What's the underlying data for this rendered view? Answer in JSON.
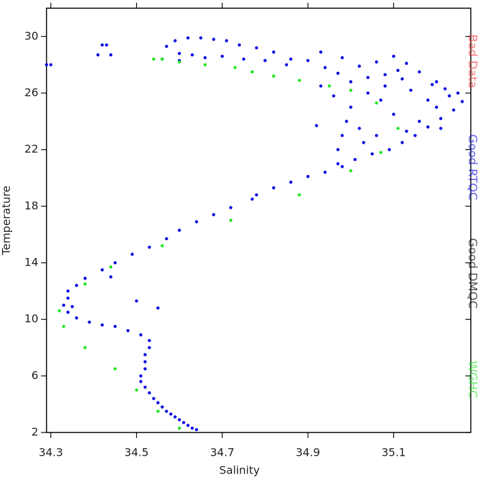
{
  "chart_data": {
    "type": "scatter",
    "xlabel": "Salinity",
    "ylabel": "Temperature",
    "xlim": [
      34.29,
      35.28
    ],
    "ylim": [
      2,
      32
    ],
    "xticks": [
      34.3,
      34.5,
      34.7,
      34.9,
      35.1
    ],
    "yticks": [
      2,
      6,
      10,
      14,
      18,
      22,
      26,
      30
    ],
    "series": [
      {
        "name": "Bad Data",
        "color": "#ff3030",
        "x": [],
        "values": []
      },
      {
        "name": "Good RTQC",
        "color": "#0a0ae6",
        "x": [
          34.64,
          34.63,
          34.62,
          34.61,
          34.6,
          34.59,
          34.58,
          34.57,
          34.56,
          34.55,
          34.54,
          34.53,
          34.52,
          34.51,
          34.51,
          34.52,
          34.52,
          34.52,
          34.53,
          34.53,
          34.51,
          34.48,
          34.45,
          34.42,
          34.39,
          34.36,
          34.34,
          34.33,
          34.35,
          34.34,
          34.34,
          34.36,
          34.38,
          34.42,
          34.45,
          34.49,
          34.53,
          34.57,
          34.6,
          34.64,
          34.68,
          34.72,
          34.77,
          34.78,
          34.82,
          34.86,
          34.9,
          34.94,
          34.98,
          35.01,
          35.05,
          35.09,
          35.12,
          35.15,
          35.18,
          35.21,
          35.24,
          35.26,
          35.25,
          35.22,
          35.19,
          35.12,
          35.08,
          35.04,
          35.0,
          34.97,
          34.94,
          34.9,
          34.85,
          34.8,
          34.75,
          34.7,
          34.66,
          34.63,
          34.6,
          34.57,
          34.59,
          34.62,
          34.65,
          34.68,
          34.71,
          34.74,
          34.78,
          34.82,
          34.86,
          34.93,
          34.98,
          35.02,
          35.06,
          35.1,
          35.13,
          35.16,
          35.2,
          35.23,
          35.2,
          35.16,
          35.13,
          35.1,
          35.07,
          35.04,
          35.0,
          34.99,
          34.98,
          34.97,
          35.02,
          35.03,
          35.08,
          35.14,
          35.18,
          35.21,
          35.06,
          34.96,
          34.93,
          35.11,
          34.97,
          34.92,
          34.55,
          34.5,
          34.44,
          34.3,
          34.29,
          34.42,
          34.43,
          34.41,
          34.44,
          34.56,
          34.6
        ],
        "values": [
          2.2,
          2.3,
          2.5,
          2.7,
          2.9,
          3.1,
          3.3,
          3.5,
          3.8,
          4.1,
          4.4,
          4.8,
          5.2,
          5.6,
          6.0,
          6.5,
          7.0,
          7.5,
          8.0,
          8.5,
          8.9,
          9.2,
          9.5,
          9.6,
          9.8,
          10.1,
          10.5,
          11.0,
          10.9,
          11.5,
          12.0,
          12.4,
          12.9,
          13.5,
          14.0,
          14.6,
          15.1,
          15.7,
          16.3,
          16.9,
          17.4,
          17.9,
          18.5,
          18.8,
          19.3,
          19.7,
          20.1,
          20.4,
          20.8,
          21.3,
          21.7,
          22.0,
          22.5,
          23.0,
          23.6,
          24.2,
          24.8,
          25.4,
          26.0,
          26.3,
          26.6,
          27.0,
          27.3,
          27.1,
          26.8,
          27.4,
          27.8,
          28.3,
          28.0,
          28.3,
          28.4,
          28.6,
          28.5,
          28.7,
          28.8,
          29.3,
          29.7,
          29.9,
          29.9,
          29.8,
          29.7,
          29.4,
          29.2,
          28.9,
          28.4,
          28.9,
          28.5,
          27.9,
          28.2,
          28.6,
          28.1,
          27.5,
          26.8,
          25.8,
          25.0,
          24.0,
          23.3,
          24.5,
          25.5,
          26.0,
          25.0,
          24.0,
          23.0,
          22.0,
          23.5,
          22.5,
          26.5,
          26.2,
          25.5,
          23.5,
          23.0,
          25.8,
          26.5,
          27.6,
          21.0,
          23.7,
          10.8,
          11.3,
          13.0,
          28.0,
          28.0,
          29.4,
          29.4,
          28.7,
          28.7,
          28.4,
          28.3
        ]
      },
      {
        "name": "Good DMQC",
        "color": "#000000",
        "x": [],
        "values": []
      },
      {
        "name": "WGHC",
        "color": "#22e622",
        "x": [
          34.6,
          34.55,
          34.5,
          34.45,
          34.38,
          34.33,
          34.32,
          34.38,
          34.44,
          34.56,
          34.72,
          34.88,
          35.0,
          35.07,
          35.11,
          35.06,
          35.0,
          34.95,
          34.88,
          34.82,
          34.77,
          34.73,
          34.66,
          34.6,
          34.56,
          34.54
        ],
        "values": [
          2.3,
          3.5,
          5.0,
          6.5,
          8.0,
          9.5,
          10.6,
          12.5,
          13.7,
          15.2,
          17.0,
          18.8,
          20.5,
          21.8,
          23.5,
          25.3,
          26.2,
          26.5,
          26.9,
          27.2,
          27.5,
          27.8,
          28.0,
          28.2,
          28.4,
          28.4
        ]
      }
    ]
  }
}
